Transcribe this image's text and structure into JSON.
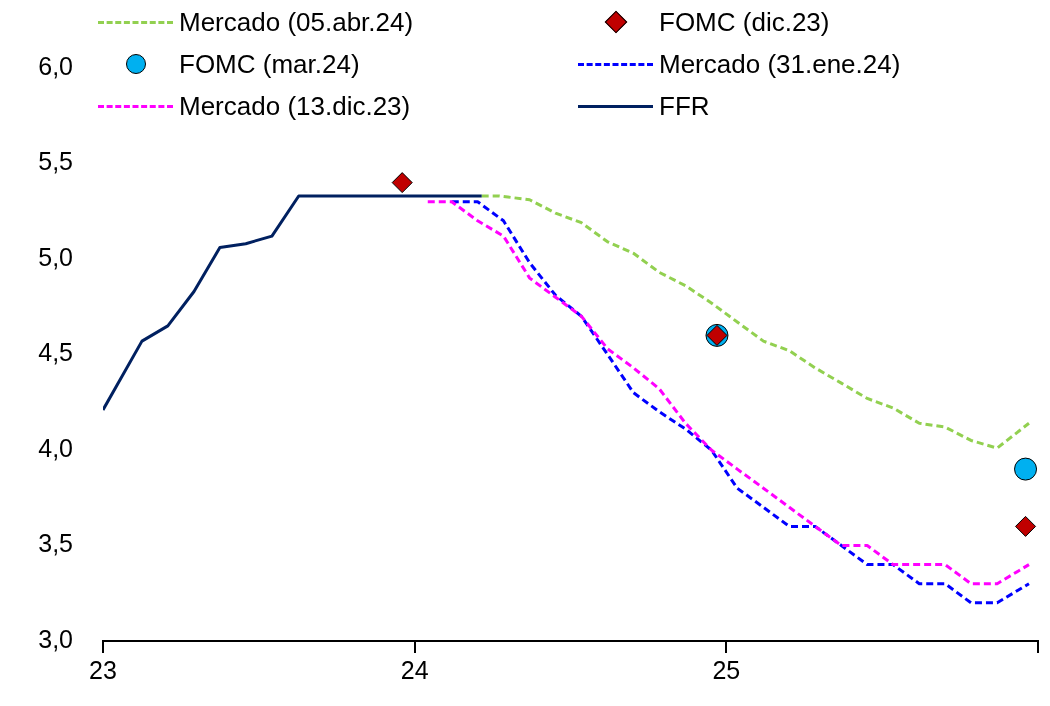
{
  "chart_data": {
    "type": "line",
    "xlim": [
      23,
      26
    ],
    "xticks": [
      23,
      24,
      25,
      {
        "value": 26,
        "label": null
      }
    ],
    "ylim": [
      3,
      6
    ],
    "yticks": [
      {
        "value": 3,
        "label": "3,0"
      },
      {
        "value": 3.5,
        "label": "3,5"
      },
      {
        "value": 4,
        "label": "4,0"
      },
      {
        "value": 4.5,
        "label": "4,5"
      },
      {
        "value": 5,
        "label": "5,0"
      },
      {
        "value": 5.5,
        "label": "5,5"
      },
      {
        "value": 6,
        "label": "6,0"
      }
    ],
    "legend": "top",
    "series": [
      {
        "name": "Mercado (05.abr.24)",
        "type": "line",
        "line_style": "dashed",
        "marker": "none",
        "color": "#92d050",
        "x": [
          24.215,
          24.272,
          24.369,
          24.452,
          24.535,
          24.619,
          24.702,
          24.785,
          24.869,
          24.952,
          25.035,
          25.119,
          25.202,
          25.285,
          25.369,
          25.452,
          25.535,
          25.619,
          25.702,
          25.785,
          25.869,
          25.971
        ],
        "values": [
          5.33,
          5.33,
          5.31,
          5.24,
          5.19,
          5.09,
          5.03,
          4.93,
          4.86,
          4.77,
          4.67,
          4.57,
          4.52,
          4.43,
          4.35,
          4.27,
          4.22,
          4.14,
          4.12,
          4.05,
          4.01,
          4.14
        ]
      },
      {
        "name": "FOMC (dic.23)",
        "type": "scatter",
        "marker": "diamond",
        "color": "#c00000",
        "x": [
          23.96,
          24.97,
          25.96
        ],
        "values": [
          5.4,
          4.6,
          3.6
        ]
      },
      {
        "name": "FOMC (mar.24)",
        "type": "scatter",
        "marker": "circle",
        "color": "#00b0f0",
        "x": [
          24.97,
          25.96
        ],
        "values": [
          4.6,
          3.9
        ]
      },
      {
        "name": "Mercado (31.ene.24)",
        "type": "line",
        "line_style": "dashed",
        "marker": "none",
        "color": "#0000ff",
        "x": [
          24.119,
          24.202,
          24.285,
          24.369,
          24.452,
          24.535,
          24.619,
          24.702,
          24.785,
          24.869,
          24.952,
          25.035,
          25.119,
          25.202,
          25.285,
          25.369,
          25.452,
          25.535,
          25.619,
          25.702,
          25.785,
          25.869,
          25.971
        ],
        "values": [
          5.3,
          5.3,
          5.2,
          4.98,
          4.81,
          4.7,
          4.5,
          4.3,
          4.2,
          4.11,
          4.0,
          3.8,
          3.7,
          3.6,
          3.6,
          3.5,
          3.4,
          3.4,
          3.3,
          3.3,
          3.2,
          3.2,
          3.3
        ]
      },
      {
        "name": "Mercado (13.dic.23)",
        "type": "line",
        "line_style": "dashed",
        "marker": "none",
        "color": "#ff00ff",
        "x": [
          24.042,
          24.119,
          24.202,
          24.285,
          24.369,
          24.452,
          24.535,
          24.619,
          24.702,
          24.785,
          24.869,
          24.952,
          25.035,
          25.119,
          25.202,
          25.285,
          25.369,
          25.452,
          25.535,
          25.619,
          25.702,
          25.785,
          25.869,
          25.971
        ],
        "values": [
          5.3,
          5.3,
          5.2,
          5.12,
          4.9,
          4.8,
          4.7,
          4.53,
          4.43,
          4.32,
          4.14,
          4.0,
          3.9,
          3.8,
          3.7,
          3.6,
          3.5,
          3.5,
          3.4,
          3.4,
          3.4,
          3.3,
          3.3,
          3.4
        ]
      },
      {
        "name": "FFR",
        "type": "line",
        "line_style": "solid",
        "marker": "none",
        "color": "#002060",
        "x": [
          23.0,
          23.125,
          23.208,
          23.292,
          23.375,
          23.458,
          23.542,
          23.628,
          24.215
        ],
        "values": [
          4.21,
          4.57,
          4.65,
          4.83,
          5.06,
          5.08,
          5.12,
          5.33,
          5.33
        ]
      }
    ]
  }
}
